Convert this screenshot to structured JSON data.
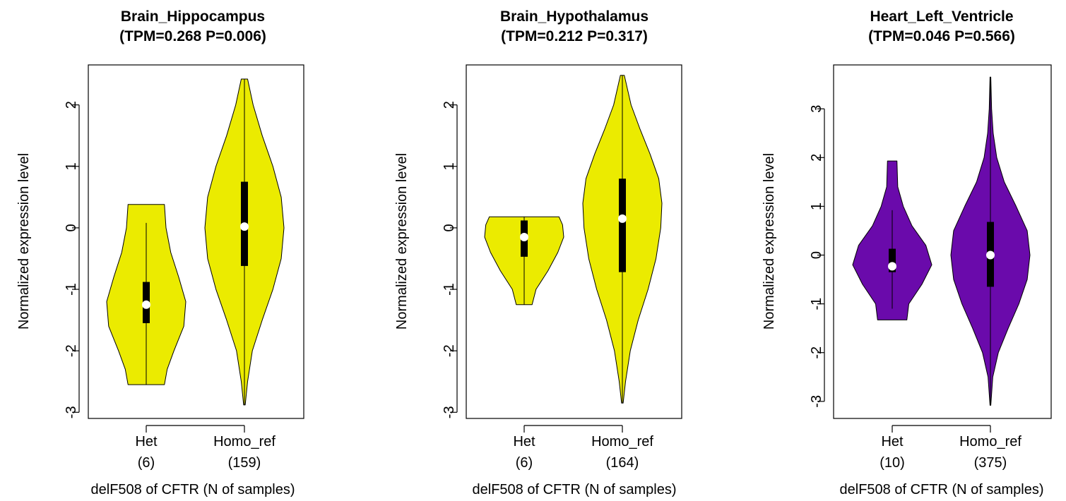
{
  "chart_data": [
    {
      "type": "violin",
      "title": "Brain_Hippocampus",
      "subtitle": "(TPM=0.268 P=0.006)",
      "xlabel": "delF508 of CFTR (N of samples)",
      "ylabel": "Normalized expression level",
      "ylim": [
        -3.1,
        2.65
      ],
      "yticks": [
        "-3",
        "-2",
        "-1",
        "0",
        "1",
        "2"
      ],
      "fill": "#EBEB00",
      "groups": [
        {
          "label": "Het",
          "n": "(6)",
          "min": -2.55,
          "max": 0.38,
          "median": -1.25,
          "q1": -1.55,
          "q3": -0.88,
          "whisker_lo": -2.55,
          "whisker_hi": 0.08,
          "flat_top": true,
          "flat_bottom": true,
          "profile": [
            [
              -2.55,
              0.46
            ],
            [
              -2.3,
              0.53
            ],
            [
              -2.0,
              0.7
            ],
            [
              -1.6,
              0.95
            ],
            [
              -1.2,
              1.0
            ],
            [
              -0.8,
              0.82
            ],
            [
              -0.4,
              0.62
            ],
            [
              0.0,
              0.5
            ],
            [
              0.38,
              0.46
            ]
          ]
        },
        {
          "label": "Homo_ref",
          "n": "(159)",
          "min": -2.88,
          "max": 2.42,
          "median": 0.02,
          "q1": -0.62,
          "q3": 0.75,
          "whisker_lo": -2.88,
          "whisker_hi": 2.42,
          "profile": [
            [
              -2.88,
              0.02
            ],
            [
              -2.5,
              0.08
            ],
            [
              -2.0,
              0.2
            ],
            [
              -1.5,
              0.45
            ],
            [
              -1.0,
              0.72
            ],
            [
              -0.5,
              0.93
            ],
            [
              0.0,
              1.0
            ],
            [
              0.5,
              0.93
            ],
            [
              1.0,
              0.72
            ],
            [
              1.5,
              0.45
            ],
            [
              2.0,
              0.22
            ],
            [
              2.42,
              0.08
            ]
          ]
        }
      ]
    },
    {
      "type": "violin",
      "title": "Brain_Hypothalamus",
      "subtitle": "(TPM=0.212 P=0.317)",
      "xlabel": "delF508 of CFTR (N of samples)",
      "ylabel": "Normalized expression level",
      "ylim": [
        -3.1,
        2.65
      ],
      "yticks": [
        "-3",
        "-2",
        "-1",
        "0",
        "1",
        "2"
      ],
      "fill": "#EBEB00",
      "groups": [
        {
          "label": "Het",
          "n": "(6)",
          "min": -1.25,
          "max": 0.18,
          "median": -0.15,
          "q1": -0.47,
          "q3": 0.12,
          "whisker_lo": -1.25,
          "whisker_hi": 0.18,
          "flat_top": true,
          "flat_bottom": true,
          "profile": [
            [
              -1.25,
              0.2
            ],
            [
              -1.0,
              0.3
            ],
            [
              -0.7,
              0.6
            ],
            [
              -0.4,
              0.85
            ],
            [
              -0.15,
              1.0
            ],
            [
              0.05,
              0.97
            ],
            [
              0.18,
              0.88
            ]
          ]
        },
        {
          "label": "Homo_ref",
          "n": "(164)",
          "min": -2.85,
          "max": 2.48,
          "median": 0.15,
          "q1": -0.72,
          "q3": 0.8,
          "whisker_lo": -2.85,
          "whisker_hi": 2.48,
          "profile": [
            [
              -2.85,
              0.02
            ],
            [
              -2.5,
              0.08
            ],
            [
              -2.0,
              0.2
            ],
            [
              -1.5,
              0.4
            ],
            [
              -1.0,
              0.65
            ],
            [
              -0.5,
              0.85
            ],
            [
              0.0,
              0.97
            ],
            [
              0.4,
              1.0
            ],
            [
              0.8,
              0.92
            ],
            [
              1.2,
              0.7
            ],
            [
              1.6,
              0.45
            ],
            [
              2.0,
              0.22
            ],
            [
              2.48,
              0.05
            ]
          ]
        }
      ]
    },
    {
      "type": "violin",
      "title": "Heart_Left_Ventricle",
      "subtitle": "(TPM=0.046 P=0.566)",
      "xlabel": "delF508 of CFTR (N of samples)",
      "ylabel": "Normalized expression level",
      "ylim": [
        -3.35,
        3.9
      ],
      "yticks": [
        "-3",
        "-2",
        "-1",
        "0",
        "1",
        "2",
        "3"
      ],
      "fill": "#6A0AAB",
      "groups": [
        {
          "label": "Het",
          "n": "(10)",
          "min": -1.33,
          "max": 1.93,
          "median": -0.23,
          "q1": -0.35,
          "q3": 0.13,
          "whisker_lo": -1.1,
          "whisker_hi": 0.92,
          "flat_top": true,
          "flat_bottom": true,
          "profile": [
            [
              -1.33,
              0.37
            ],
            [
              -1.0,
              0.42
            ],
            [
              -0.6,
              0.75
            ],
            [
              -0.2,
              1.0
            ],
            [
              0.2,
              0.85
            ],
            [
              0.6,
              0.5
            ],
            [
              1.0,
              0.28
            ],
            [
              1.4,
              0.14
            ],
            [
              1.93,
              0.12
            ]
          ]
        },
        {
          "label": "Homo_ref",
          "n": "(375)",
          "min": -3.08,
          "max": 3.65,
          "median": 0.0,
          "q1": -0.65,
          "q3": 0.68,
          "whisker_lo": -3.08,
          "whisker_hi": 3.65,
          "profile": [
            [
              -3.08,
              0.01
            ],
            [
              -2.5,
              0.06
            ],
            [
              -2.0,
              0.2
            ],
            [
              -1.5,
              0.45
            ],
            [
              -1.0,
              0.72
            ],
            [
              -0.5,
              0.93
            ],
            [
              0.0,
              1.0
            ],
            [
              0.5,
              0.93
            ],
            [
              1.0,
              0.65
            ],
            [
              1.5,
              0.35
            ],
            [
              2.0,
              0.16
            ],
            [
              2.5,
              0.07
            ],
            [
              3.0,
              0.03
            ],
            [
              3.65,
              0.01
            ]
          ]
        }
      ]
    }
  ]
}
